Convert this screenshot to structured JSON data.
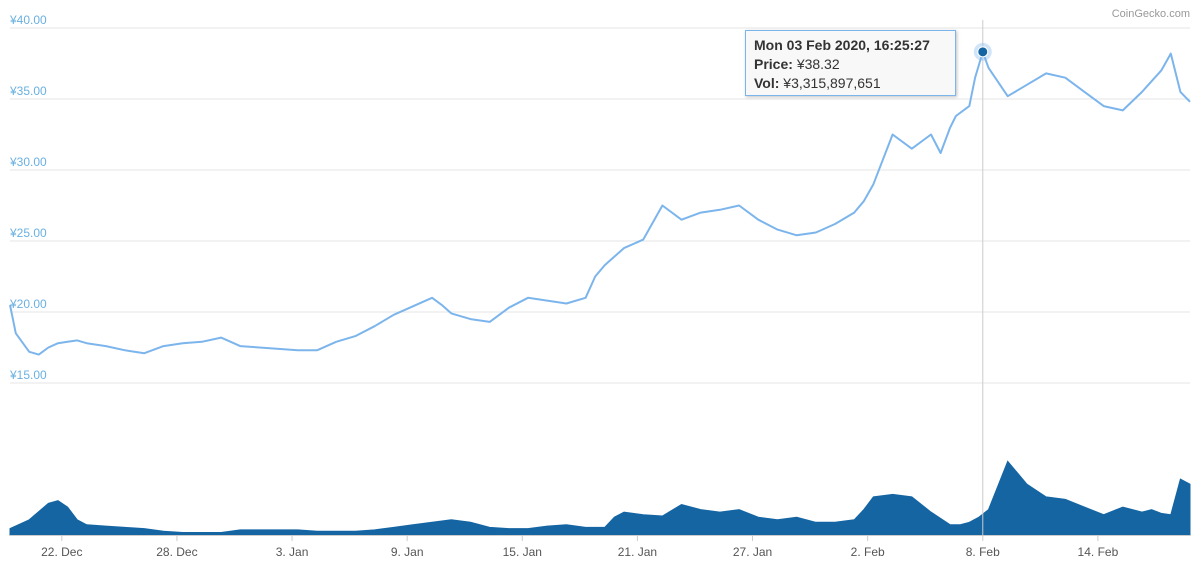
{
  "credits": "CoinGecko.com",
  "colors": {
    "price_line": "#7cb5ec",
    "volume_fill": "#1565a3",
    "axis_label": "#6ab0e0",
    "grid": "#e6e6e6"
  },
  "tooltip": {
    "title": "Mon 03 Feb 2020, 16:25:27",
    "price_label": "Price:",
    "price_value": "¥38.32",
    "vol_label": "Vol:",
    "vol_value": "¥3,315,897,651"
  },
  "chart_data": [
    {
      "type": "line",
      "title": "",
      "xlabel": "",
      "ylabel": "",
      "ylim": [
        15,
        40
      ],
      "yticks": [
        "¥15.00",
        "¥20.00",
        "¥25.00",
        "¥30.00",
        "¥35.00",
        "¥40.00"
      ],
      "xticks": [
        "22. Dec",
        "28. Dec",
        "3. Jan",
        "9. Jan",
        "15. Jan",
        "21. Jan",
        "27. Jan",
        "2. Feb",
        "8. Feb",
        "14. Feb"
      ],
      "grid": true,
      "x_range_days": [
        0,
        61.5
      ],
      "series": [
        {
          "x": [
            0,
            0.3,
            1.0,
            1.5,
            2,
            2.5,
            3,
            3.5,
            4,
            5,
            6,
            7,
            8,
            9,
            10,
            11,
            12,
            13,
            14,
            15,
            16,
            17,
            18,
            19,
            20,
            21,
            22,
            22.5,
            23,
            24,
            25,
            26,
            27,
            28,
            29,
            30,
            30.5,
            31,
            32,
            33,
            34,
            35,
            36,
            37,
            38,
            39,
            40,
            41,
            42,
            43,
            44,
            44.5,
            45,
            46,
            47,
            48,
            48.5,
            49,
            49.3,
            50,
            50.3,
            50.7,
            51,
            52,
            53,
            54,
            55,
            56,
            57,
            58,
            59,
            60,
            60.5,
            61,
            61.5
          ],
          "y": [
            20.5,
            18.5,
            17.2,
            17.0,
            17.5,
            17.8,
            17.9,
            18.0,
            17.8,
            17.6,
            17.3,
            17.1,
            17.6,
            17.8,
            17.9,
            18.2,
            17.6,
            17.5,
            17.4,
            17.3,
            17.3,
            17.9,
            18.3,
            19.0,
            19.8,
            20.4,
            21.0,
            20.5,
            19.9,
            19.5,
            19.3,
            20.3,
            21.0,
            20.8,
            20.6,
            21.0,
            22.5,
            23.3,
            24.5,
            25.1,
            27.5,
            26.5,
            27.0,
            27.2,
            27.5,
            26.5,
            25.8,
            25.4,
            25.6,
            26.2,
            27.0,
            27.8,
            29.0,
            32.5,
            31.5,
            32.5,
            31.2,
            33.0,
            33.8,
            34.5,
            36.5,
            38.32,
            37.2,
            35.2,
            36.0,
            36.8,
            36.5,
            35.5,
            34.5,
            34.2,
            35.5,
            37.0,
            38.2,
            35.5,
            34.8
          ]
        }
      ]
    },
    {
      "type": "area",
      "title": "",
      "xlabel": "",
      "ylabel": "",
      "ylim": [
        0,
        100
      ],
      "grid": false,
      "series": [
        {
          "x": [
            0,
            1,
            2,
            2.5,
            3,
            3.5,
            4,
            5,
            6,
            7,
            8,
            9,
            10,
            11,
            12,
            13,
            14,
            15,
            16,
            17,
            18,
            19,
            20,
            21,
            22,
            23,
            24,
            25,
            26,
            27,
            28,
            29,
            30,
            31,
            31.5,
            32,
            33,
            34,
            35,
            36,
            37,
            38,
            39,
            40,
            41,
            42,
            43,
            44,
            44.5,
            45,
            46,
            47,
            48,
            49,
            49.5,
            50,
            50.5,
            51,
            52,
            53,
            54,
            55,
            56,
            57,
            58,
            59,
            59.5,
            60,
            60.5,
            61,
            61.5
          ],
          "y": [
            5,
            12,
            25,
            27,
            22,
            12,
            8,
            7,
            6,
            5,
            3,
            2,
            2,
            2,
            4,
            4,
            4,
            4,
            3,
            3,
            3,
            4,
            6,
            8,
            10,
            12,
            10,
            6,
            5,
            5,
            7,
            8,
            6,
            6,
            14,
            18,
            16,
            15,
            24,
            20,
            18,
            20,
            14,
            12,
            14,
            10,
            10,
            12,
            20,
            30,
            32,
            30,
            18,
            8,
            8,
            10,
            14,
            20,
            58,
            40,
            30,
            28,
            22,
            16,
            22,
            18,
            20,
            17,
            16,
            44,
            40
          ]
        }
      ]
    }
  ]
}
